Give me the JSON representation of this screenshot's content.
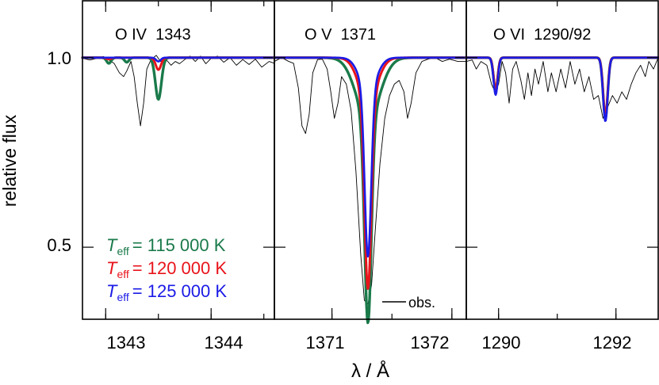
{
  "chart_data": {
    "type": "line",
    "ylabel": "relative flux",
    "xlabel": "λ / Å",
    "ylim": [
      0.31,
      1.15
    ],
    "y_ticks": [
      {
        "value": 1.0,
        "label": "1.0"
      },
      {
        "value": 0.5,
        "label": "0.5"
      }
    ],
    "legend": {
      "placement": "bottom-left of first panel",
      "symbol": "T",
      "subscript": "eff",
      "entries": [
        {
          "value": "= 115 000 K",
          "color": "#1a7a4a"
        },
        {
          "value": "= 120 000 K",
          "color": "#e8141b"
        },
        {
          "value": "= 125 000 K",
          "color": "#1b1be6"
        }
      ],
      "obs_label": "obs."
    },
    "panels": [
      {
        "title": "O IV  1343",
        "xlim": [
          1342.78,
          1344.6
        ],
        "x_ticks": [
          {
            "value": 1343,
            "label": "1343"
          },
          {
            "value": 1344,
            "label": "1344"
          }
        ],
        "observed": [
          [
            1342.78,
            0.998
          ],
          [
            1342.85,
            0.994
          ],
          [
            1342.92,
            0.998
          ],
          [
            1342.98,
            1.003
          ],
          [
            1343.03,
            0.994
          ],
          [
            1343.08,
            0.985
          ],
          [
            1343.13,
            0.96
          ],
          [
            1343.17,
            0.95
          ],
          [
            1343.2,
            0.965
          ],
          [
            1343.24,
            0.99
          ],
          [
            1343.27,
            0.95
          ],
          [
            1343.3,
            0.88
          ],
          [
            1343.33,
            0.82
          ],
          [
            1343.36,
            0.88
          ],
          [
            1343.39,
            0.97
          ],
          [
            1343.43,
            0.995
          ],
          [
            1343.48,
            1.006
          ],
          [
            1343.52,
            0.99
          ],
          [
            1343.57,
            0.996
          ],
          [
            1343.62,
            0.98
          ],
          [
            1343.66,
            0.99
          ],
          [
            1343.7,
            0.984
          ],
          [
            1343.75,
            0.995
          ],
          [
            1343.8,
            1.004
          ],
          [
            1343.85,
            0.99
          ],
          [
            1343.9,
            1.004
          ],
          [
            1343.95,
            0.984
          ],
          [
            1344.0,
            0.998
          ],
          [
            1344.06,
            1.004
          ],
          [
            1344.12,
            0.988
          ],
          [
            1344.18,
            1.0
          ],
          [
            1344.24,
            0.98
          ],
          [
            1344.3,
            0.995
          ],
          [
            1344.36,
            0.982
          ],
          [
            1344.42,
            0.996
          ],
          [
            1344.48,
            0.975
          ],
          [
            1344.55,
            0.99
          ],
          [
            1344.6,
            0.985
          ]
        ],
        "series": [
          {
            "name": "T_eff = 115 000 K",
            "color": "#1a7a4a",
            "width": 3.4,
            "continuum": 1.0,
            "lines": [
              {
                "center": 1343.5,
                "depth": 0.11,
                "width": 0.04
              },
              {
                "center": 1343.03,
                "depth": 0.015,
                "width": 0.03
              },
              {
                "center": 1343.2,
                "depth": 0.012,
                "width": 0.03
              }
            ]
          },
          {
            "name": "T_eff = 120 000 K",
            "color": "#e8141b",
            "width": 3.0,
            "continuum": 1.0,
            "lines": [
              {
                "center": 1343.5,
                "depth": 0.032,
                "width": 0.035
              },
              {
                "center": 1343.03,
                "depth": 0.004,
                "width": 0.03
              }
            ]
          },
          {
            "name": "T_eff = 125 000 K",
            "color": "#1b1be6",
            "width": 2.6,
            "continuum": 1.0,
            "lines": [
              {
                "center": 1343.5,
                "depth": 0.01,
                "width": 0.03
              }
            ]
          }
        ]
      },
      {
        "title": "O V  1371",
        "xlim": [
          1370.52,
          1372.12
        ],
        "x_ticks": [
          {
            "value": 1371,
            "label": "1371"
          },
          {
            "value": 1372,
            "label": "1372"
          }
        ],
        "observed": [
          [
            1370.52,
            0.99
          ],
          [
            1370.58,
            1.0
          ],
          [
            1370.64,
            0.99
          ],
          [
            1370.68,
            0.985
          ],
          [
            1370.72,
            0.92
          ],
          [
            1370.75,
            0.82
          ],
          [
            1370.78,
            0.8
          ],
          [
            1370.81,
            0.85
          ],
          [
            1370.84,
            0.96
          ],
          [
            1370.88,
            0.995
          ],
          [
            1370.92,
            0.996
          ],
          [
            1370.96,
            0.97
          ],
          [
            1370.99,
            0.91
          ],
          [
            1371.02,
            0.84
          ],
          [
            1371.05,
            0.88
          ],
          [
            1371.08,
            0.95
          ],
          [
            1371.12,
            0.93
          ],
          [
            1371.16,
            0.86
          ],
          [
            1371.2,
            0.7
          ],
          [
            1371.24,
            0.48
          ],
          [
            1371.27,
            0.36
          ],
          [
            1371.3,
            0.35
          ],
          [
            1371.33,
            0.4
          ],
          [
            1371.36,
            0.54
          ],
          [
            1371.4,
            0.72
          ],
          [
            1371.44,
            0.84
          ],
          [
            1371.48,
            0.9
          ],
          [
            1371.52,
            0.93
          ],
          [
            1371.56,
            0.94
          ],
          [
            1371.6,
            0.91
          ],
          [
            1371.63,
            0.84
          ],
          [
            1371.66,
            0.88
          ],
          [
            1371.7,
            0.96
          ],
          [
            1371.75,
            0.99
          ],
          [
            1371.8,
            0.996
          ],
          [
            1371.86,
            1.0
          ],
          [
            1371.92,
            0.99
          ],
          [
            1371.98,
            0.996
          ],
          [
            1372.05,
            0.99
          ],
          [
            1372.12,
            0.99
          ]
        ],
        "series": [
          {
            "name": "T_eff = 115 000 K",
            "color": "#1a7a4a",
            "width": 3.4,
            "continuum": 1.0,
            "lines": [
              {
                "center": 1371.3,
                "depth": 0.54,
                "width": 0.04
              },
              {
                "center": 1371.3,
                "depth": 0.16,
                "width": 0.14
              }
            ]
          },
          {
            "name": "T_eff = 120 000 K",
            "color": "#e8141b",
            "width": 3.0,
            "continuum": 1.0,
            "lines": [
              {
                "center": 1371.3,
                "depth": 0.5,
                "width": 0.04
              },
              {
                "center": 1371.3,
                "depth": 0.11,
                "width": 0.11
              }
            ]
          },
          {
            "name": "T_eff = 125 000 K",
            "color": "#1b1be6",
            "width": 2.6,
            "continuum": 1.0,
            "lines": [
              {
                "center": 1371.3,
                "depth": 0.44,
                "width": 0.038
              },
              {
                "center": 1371.3,
                "depth": 0.085,
                "width": 0.1
              }
            ]
          }
        ]
      },
      {
        "title": "O VI  1290/92",
        "xlim": [
          1289.45,
          1292.72
        ],
        "x_ticks": [
          {
            "value": 1290,
            "label": "1290"
          },
          {
            "value": 1292,
            "label": "1292"
          }
        ],
        "observed": [
          [
            1289.45,
            0.99
          ],
          [
            1289.55,
            0.994
          ],
          [
            1289.62,
            0.97
          ],
          [
            1289.7,
            0.99
          ],
          [
            1289.8,
            0.98
          ],
          [
            1289.88,
            0.93
          ],
          [
            1289.94,
            0.91
          ],
          [
            1290.0,
            0.93
          ],
          [
            1290.06,
            0.99
          ],
          [
            1290.12,
            0.96
          ],
          [
            1290.18,
            0.88
          ],
          [
            1290.24,
            0.97
          ],
          [
            1290.3,
            0.99
          ],
          [
            1290.38,
            0.94
          ],
          [
            1290.44,
            0.89
          ],
          [
            1290.5,
            0.96
          ],
          [
            1290.56,
            0.9
          ],
          [
            1290.62,
            0.97
          ],
          [
            1290.68,
            0.93
          ],
          [
            1290.76,
            0.99
          ],
          [
            1290.84,
            0.91
          ],
          [
            1290.9,
            0.96
          ],
          [
            1290.98,
            0.91
          ],
          [
            1291.06,
            0.97
          ],
          [
            1291.14,
            0.92
          ],
          [
            1291.22,
            0.99
          ],
          [
            1291.3,
            0.93
          ],
          [
            1291.38,
            0.97
          ],
          [
            1291.46,
            0.91
          ],
          [
            1291.54,
            0.95
          ],
          [
            1291.62,
            0.89
          ],
          [
            1291.7,
            0.9
          ],
          [
            1291.78,
            0.84
          ],
          [
            1291.86,
            0.87
          ],
          [
            1291.94,
            0.9
          ],
          [
            1292.02,
            0.88
          ],
          [
            1292.1,
            0.91
          ],
          [
            1292.18,
            0.89
          ],
          [
            1292.26,
            0.93
          ],
          [
            1292.34,
            0.96
          ],
          [
            1292.42,
            0.98
          ],
          [
            1292.5,
            0.95
          ],
          [
            1292.56,
            0.99
          ],
          [
            1292.64,
            0.97
          ],
          [
            1292.72,
            1.0
          ]
        ],
        "series": [
          {
            "name": "T_eff = 115 000 K",
            "color": "#1a7a4a",
            "width": 3.4,
            "continuum": 1.0,
            "lines": [
              {
                "center": 1289.95,
                "depth": 0.088,
                "width": 0.05
              },
              {
                "center": 1291.82,
                "depth": 0.16,
                "width": 0.055
              }
            ]
          },
          {
            "name": "T_eff = 120 000 K",
            "color": "#e8141b",
            "width": 3.0,
            "continuum": 1.0,
            "lines": [
              {
                "center": 1289.95,
                "depth": 0.085,
                "width": 0.05
              },
              {
                "center": 1291.82,
                "depth": 0.155,
                "width": 0.055
              }
            ]
          },
          {
            "name": "T_eff = 125 000 K",
            "color": "#1b1be6",
            "width": 2.6,
            "continuum": 1.0,
            "lines": [
              {
                "center": 1289.95,
                "depth": 0.098,
                "width": 0.05
              },
              {
                "center": 1291.82,
                "depth": 0.168,
                "width": 0.055
              }
            ]
          }
        ]
      }
    ]
  }
}
